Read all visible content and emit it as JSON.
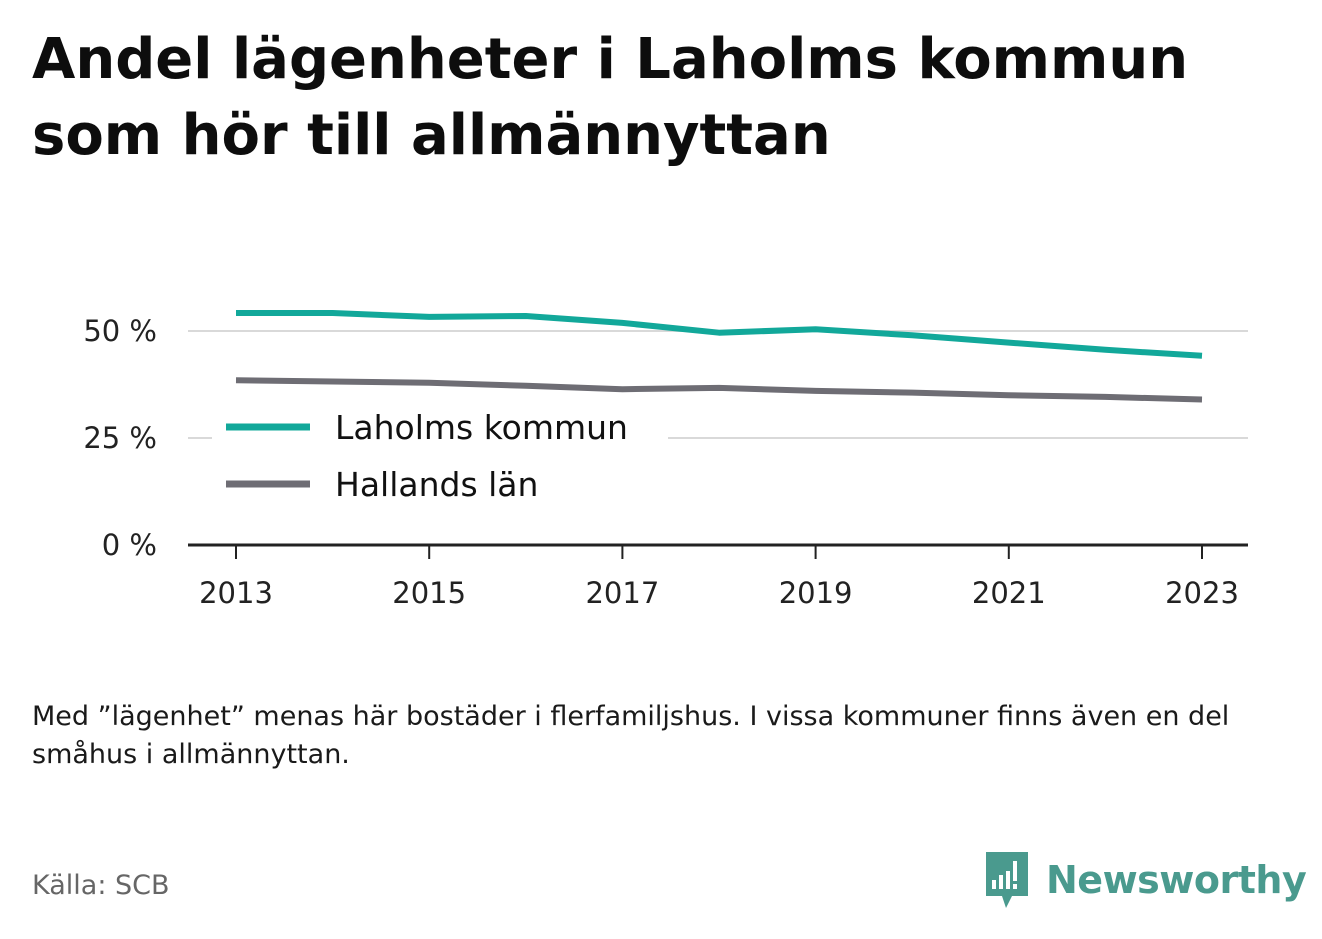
{
  "header": {
    "title": "Andel lägenheter i Laholms kommun som hör till allmännyttan"
  },
  "chart_data": {
    "type": "line",
    "x": [
      2013,
      2014,
      2015,
      2016,
      2017,
      2018,
      2019,
      2020,
      2021,
      2022,
      2023
    ],
    "x_ticks": [
      "2013",
      "2015",
      "2017",
      "2019",
      "2021",
      "2023"
    ],
    "y_ticks": [
      "0 %",
      "25 %",
      "50 %"
    ],
    "ylim": [
      0,
      50
    ],
    "grid": true,
    "legend_position": "center-left",
    "series": [
      {
        "name": "Laholms kommun",
        "color": "#12a89a",
        "values": [
          54.2,
          54.2,
          53.3,
          53.5,
          51.9,
          49.6,
          50.4,
          49.0,
          47.3,
          45.6,
          44.2
        ]
      },
      {
        "name": "Hallands län",
        "color": "#6e6d74",
        "values": [
          38.5,
          38.2,
          37.9,
          37.2,
          36.4,
          36.7,
          36.0,
          35.6,
          35.0,
          34.6,
          34.0
        ]
      }
    ]
  },
  "footer": {
    "note": "Med ”lägenhet” menas här bostäder i flerfamiljshus. I vissa kommuner finns även en del småhus i allmännyttan.",
    "source": "Källa: SCB",
    "brand_name": "Newsworthy",
    "brand_icon": "newsworthy-logo-icon",
    "brand_color": "#4a9a8e"
  }
}
